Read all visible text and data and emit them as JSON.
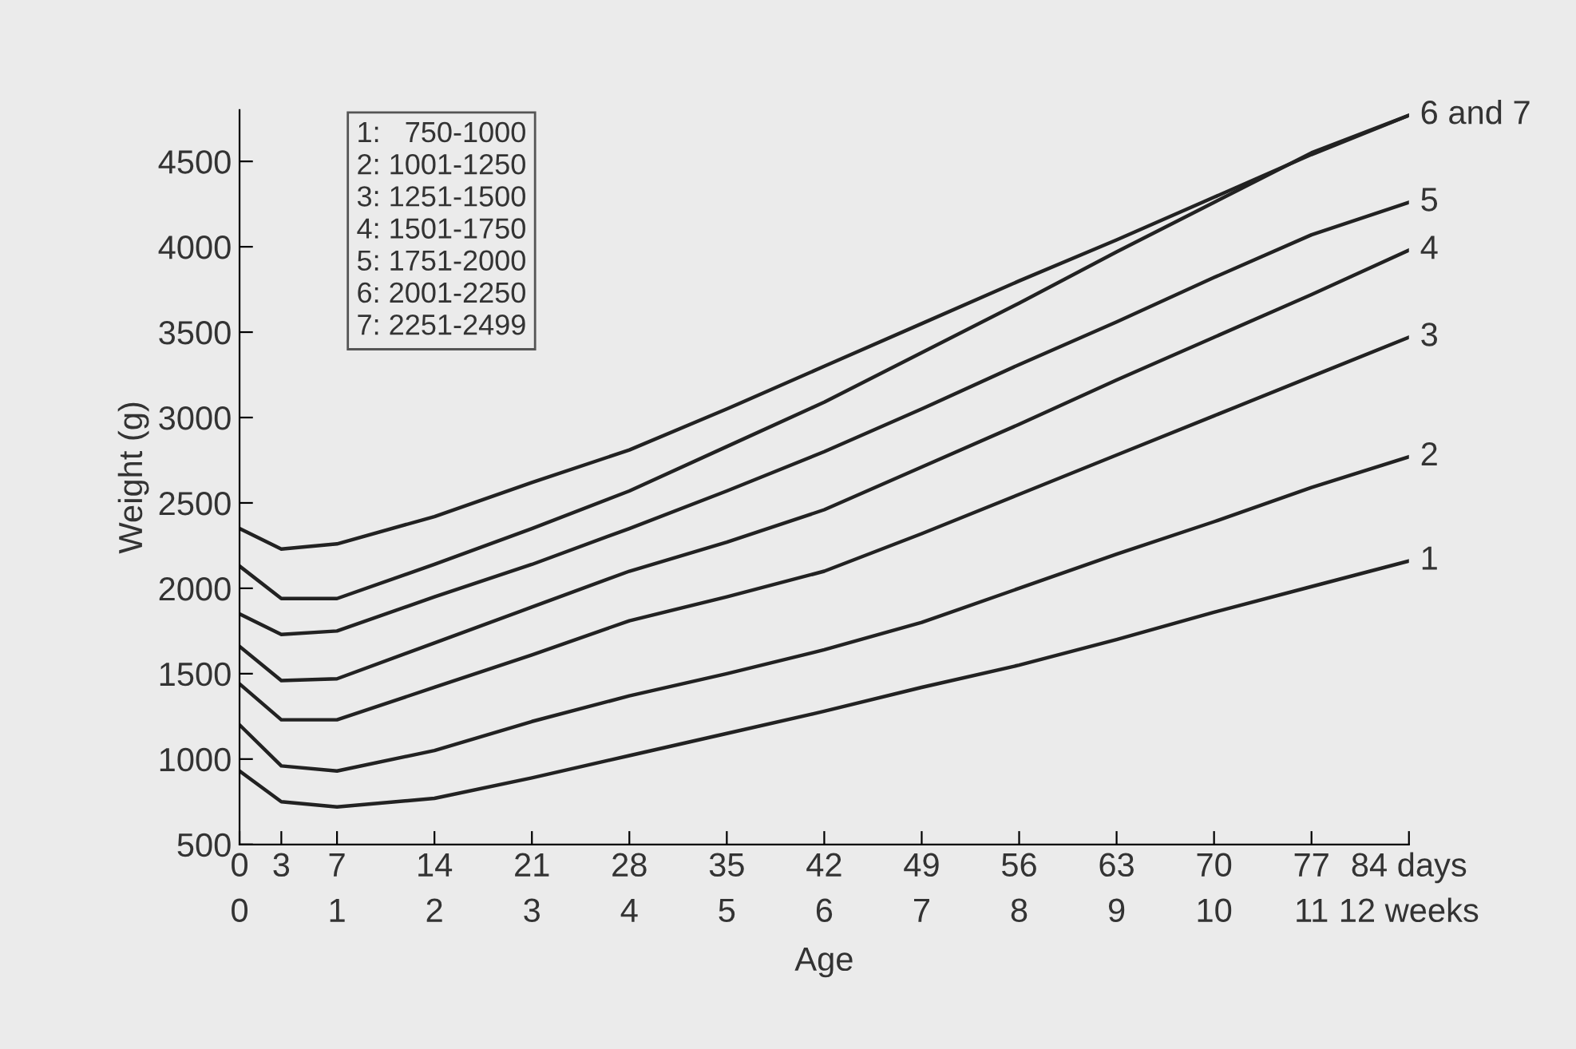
{
  "chart_data": {
    "type": "line",
    "xlabel": "Age",
    "ylabel": "Weight (g)",
    "x": [
      0,
      3,
      7,
      14,
      21,
      28,
      35,
      42,
      49,
      56,
      63,
      70,
      77,
      84
    ],
    "series": [
      {
        "name": "1",
        "color": "#222222",
        "values": [
          930,
          750,
          720,
          770,
          890,
          1020,
          1150,
          1280,
          1420,
          1550,
          1700,
          1860,
          2010,
          2160
        ]
      },
      {
        "name": "2",
        "color": "#222222",
        "values": [
          1200,
          960,
          930,
          1050,
          1220,
          1370,
          1500,
          1640,
          1800,
          2000,
          2200,
          2390,
          2590,
          2770
        ]
      },
      {
        "name": "3",
        "color": "#222222",
        "values": [
          1440,
          1230,
          1230,
          1420,
          1610,
          1810,
          1950,
          2100,
          2320,
          2550,
          2780,
          3010,
          3240,
          3470
        ]
      },
      {
        "name": "4",
        "color": "#222222",
        "values": [
          1660,
          1460,
          1470,
          1680,
          1890,
          2100,
          2270,
          2460,
          2710,
          2960,
          3220,
          3470,
          3720,
          3980
        ]
      },
      {
        "name": "5",
        "color": "#222222",
        "values": [
          1850,
          1730,
          1750,
          1950,
          2140,
          2350,
          2570,
          2800,
          3050,
          3310,
          3560,
          3820,
          4070,
          4260
        ]
      },
      {
        "name": "6 and 7",
        "color": "#222222",
        "values": [
          2130,
          1940,
          1940,
          2140,
          2350,
          2570,
          2830,
          3090,
          3380,
          3670,
          3970,
          4260,
          4550,
          4770
        ]
      },
      {
        "color": "#222222",
        "values": [
          2350,
          2230,
          2260,
          2420,
          2620,
          2810,
          3050,
          3300,
          3550,
          3800,
          4040,
          4290,
          4540,
          4770
        ]
      }
    ],
    "xlim": [
      0,
      84
    ],
    "ylim": [
      500,
      4800
    ],
    "xticks": [
      0,
      3,
      7,
      14,
      21,
      28,
      35,
      42,
      49,
      56,
      63,
      70,
      77,
      {
        "value": 84,
        "label": "84 days"
      }
    ],
    "x2lim": [
      0,
      12
    ],
    "x2ticks": [
      0,
      1,
      2,
      3,
      4,
      5,
      6,
      7,
      8,
      9,
      10,
      11,
      {
        "value": 12,
        "label": "12 weeks"
      }
    ],
    "yticks": [
      500,
      1000,
      1500,
      2000,
      2500,
      3000,
      3500,
      4000,
      4500
    ],
    "annotations": [
      "1:   750-1000",
      "2: 1001-1250",
      "3: 1251-1500",
      "4: 1501-1750",
      "5: 1751-2000",
      "6: 2001-2250",
      "7: 2251-2499"
    ],
    "grid": false,
    "legend": false,
    "marker": "none",
    "line_style": "solid"
  }
}
